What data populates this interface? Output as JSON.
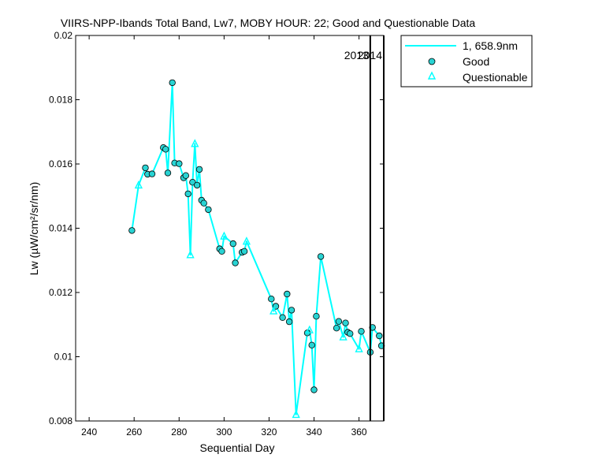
{
  "chart_data": {
    "type": "scatter",
    "title": "VIIRS-NPP-Ibands Total Band,  Lw7, MOBY HOUR: 22;  Good and Questionable Data",
    "xlabel": "Sequential Day",
    "ylabel": "Lw (µW/cm²/sr/nm)",
    "xlim": [
      234,
      371
    ],
    "ylim": [
      0.008,
      0.02
    ],
    "xticks": [
      240,
      260,
      280,
      300,
      320,
      340,
      360
    ],
    "xtick_labels": [
      "240",
      "260",
      "280",
      "300",
      "320",
      "340",
      "360"
    ],
    "yticks": [
      0.008,
      0.01,
      0.012,
      0.014,
      0.016,
      0.018,
      0.02
    ],
    "ytick_labels": [
      "0.008",
      "0.01",
      "0.012",
      "0.014",
      "0.016",
      "0.018",
      "0.02"
    ],
    "grid": false,
    "legend_position": "top-right outside",
    "colors": {
      "series": "#00ffff",
      "marker_fill": "#29d3d3",
      "axis": "#000000"
    },
    "series": [
      {
        "name": "1, 658.9nm",
        "kind": "line",
        "points": [
          [
            259,
            0.01393
          ],
          [
            262,
            0.01534
          ],
          [
            265,
            0.01588
          ],
          [
            266,
            0.01568
          ],
          [
            268,
            0.01569
          ],
          [
            273,
            0.01651
          ],
          [
            274,
            0.01646
          ],
          [
            275,
            0.01572
          ],
          [
            277,
            0.01853
          ],
          [
            278,
            0.01603
          ],
          [
            280,
            0.01601
          ],
          [
            282,
            0.01557
          ],
          [
            283,
            0.01564
          ],
          [
            284,
            0.01507
          ],
          [
            285,
            0.01317
          ],
          [
            286,
            0.01543
          ],
          [
            287,
            0.01663
          ],
          [
            288,
            0.01534
          ],
          [
            289,
            0.01583
          ],
          [
            290,
            0.01487
          ],
          [
            291,
            0.01478
          ],
          [
            293,
            0.01458
          ],
          [
            298,
            0.01336
          ],
          [
            299,
            0.01328
          ],
          [
            300,
            0.01375
          ],
          [
            304,
            0.01352
          ],
          [
            305,
            0.01292
          ],
          [
            308,
            0.01325
          ],
          [
            309,
            0.01328
          ],
          [
            310,
            0.01359
          ],
          [
            321,
            0.0118
          ],
          [
            322,
            0.01142
          ],
          [
            323,
            0.01157
          ],
          [
            326,
            0.01122
          ],
          [
            328,
            0.01195
          ],
          [
            329,
            0.01109
          ],
          [
            330,
            0.01145
          ],
          [
            332,
            0.0082
          ],
          [
            337,
            0.01074
          ],
          [
            338,
            0.01083
          ],
          [
            339,
            0.01036
          ],
          [
            340,
            0.00897
          ],
          [
            341,
            0.01126
          ],
          [
            343,
            0.01312
          ],
          [
            350,
            0.01089
          ],
          [
            351,
            0.0111
          ],
          [
            353,
            0.01061
          ],
          [
            354,
            0.01105
          ],
          [
            355,
            0.01076
          ],
          [
            356,
            0.01072
          ],
          [
            360,
            0.01024
          ],
          [
            361,
            0.01079
          ],
          [
            365,
            0.01014
          ],
          [
            366,
            0.01091
          ],
          [
            369,
            0.01065
          ],
          [
            370,
            0.01034
          ]
        ]
      },
      {
        "name": "Good",
        "kind": "circle",
        "points": [
          [
            259,
            0.01393
          ],
          [
            265,
            0.01588
          ],
          [
            266,
            0.01568
          ],
          [
            268,
            0.01569
          ],
          [
            273,
            0.01651
          ],
          [
            274,
            0.01646
          ],
          [
            275,
            0.01572
          ],
          [
            277,
            0.01853
          ],
          [
            278,
            0.01603
          ],
          [
            280,
            0.01601
          ],
          [
            282,
            0.01557
          ],
          [
            283,
            0.01564
          ],
          [
            284,
            0.01507
          ],
          [
            286,
            0.01543
          ],
          [
            288,
            0.01534
          ],
          [
            289,
            0.01583
          ],
          [
            290,
            0.01487
          ],
          [
            291,
            0.01478
          ],
          [
            293,
            0.01458
          ],
          [
            298,
            0.01336
          ],
          [
            299,
            0.01328
          ],
          [
            304,
            0.01352
          ],
          [
            305,
            0.01292
          ],
          [
            308,
            0.01325
          ],
          [
            309,
            0.01328
          ],
          [
            321,
            0.0118
          ],
          [
            323,
            0.01157
          ],
          [
            326,
            0.01122
          ],
          [
            328,
            0.01195
          ],
          [
            329,
            0.01109
          ],
          [
            330,
            0.01145
          ],
          [
            337,
            0.01074
          ],
          [
            339,
            0.01036
          ],
          [
            340,
            0.00897
          ],
          [
            341,
            0.01126
          ],
          [
            343,
            0.01312
          ],
          [
            350,
            0.01089
          ],
          [
            351,
            0.0111
          ],
          [
            354,
            0.01105
          ],
          [
            355,
            0.01076
          ],
          [
            356,
            0.01072
          ],
          [
            361,
            0.01079
          ],
          [
            365,
            0.01014
          ],
          [
            366,
            0.01091
          ],
          [
            369,
            0.01065
          ],
          [
            370,
            0.01034
          ]
        ]
      },
      {
        "name": "Questionable",
        "kind": "triangle",
        "points": [
          [
            262,
            0.01534
          ],
          [
            285,
            0.01317
          ],
          [
            287,
            0.01663
          ],
          [
            300,
            0.01375
          ],
          [
            310,
            0.01359
          ],
          [
            322,
            0.01142
          ],
          [
            332,
            0.0082
          ],
          [
            338,
            0.01083
          ],
          [
            353,
            0.01061
          ],
          [
            360,
            0.01024
          ]
        ]
      }
    ],
    "year_markers": [
      {
        "x": 365,
        "label": "2013"
      },
      {
        "x": 371,
        "label": "2014"
      }
    ]
  }
}
